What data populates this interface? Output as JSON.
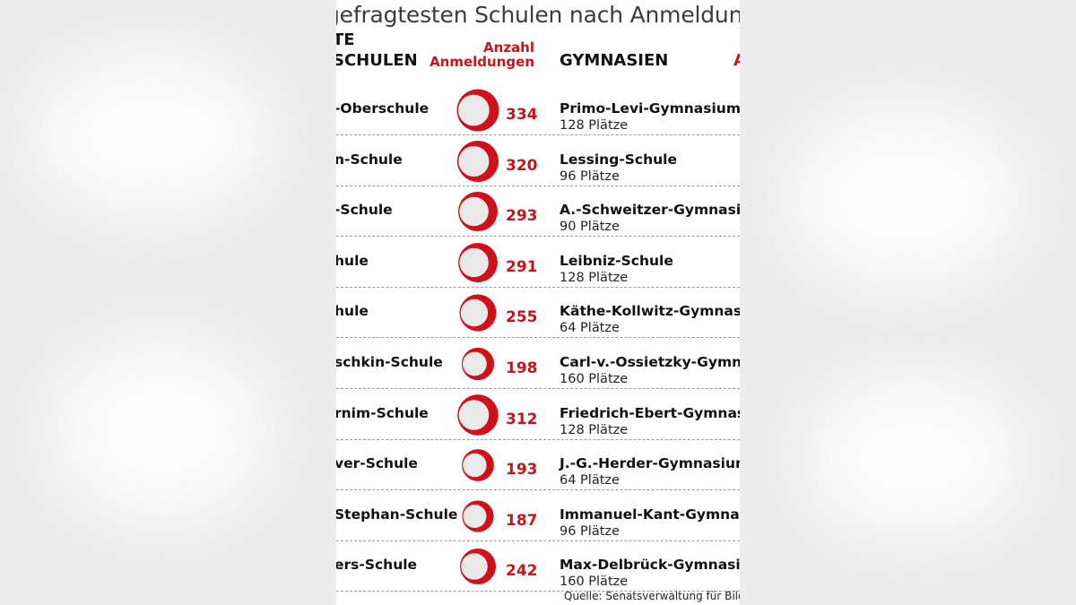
{
  "title": "gefragtesten Schulen nach Anmeldunge",
  "header": {
    "left_line1": "TE",
    "left_line2": "SCHULEN",
    "count_line1": "Anzahl",
    "count_line2": "Anmeldungen",
    "gymnasien": "GYMNASIEN",
    "right_fragment": "A"
  },
  "colors": {
    "accent": "#d0101a",
    "bubble_fill": "#e9e9e9"
  },
  "source": "Quelle: Senatsverwaltung für Bildung",
  "chart_data": {
    "type": "table",
    "columns": [
      "Oberschule",
      "Anzahl Anmeldungen",
      "Gymnasium",
      "Plätze"
    ],
    "rows": [
      {
        "oberschule": "-Oberschule",
        "anmeldungen": 334,
        "gymnasium": "Primo-Levi-Gymnasium",
        "plaetze": "128 Plätze"
      },
      {
        "oberschule": "n-Schule",
        "anmeldungen": 320,
        "gymnasium": "Lessing-Schule",
        "plaetze": "96 Plätze"
      },
      {
        "oberschule": "-Schule",
        "anmeldungen": 293,
        "gymnasium": "A.-Schweitzer-Gymnasium",
        "plaetze": "90 Plätze"
      },
      {
        "oberschule": "hule",
        "anmeldungen": 291,
        "gymnasium": "Leibniz-Schule",
        "plaetze": "128 Plätze"
      },
      {
        "oberschule": "hule",
        "anmeldungen": 255,
        "gymnasium": "Käthe-Kollwitz-Gymnasium",
        "plaetze": "64 Plätze"
      },
      {
        "oberschule": "schkin-Schule",
        "anmeldungen": 198,
        "gymnasium": "Carl-v.-Ossietzky-Gymnasi",
        "plaetze": "160 Plätze"
      },
      {
        "oberschule": "rnim-Schule",
        "anmeldungen": 312,
        "gymnasium": "Friedrich-Ebert-Gymnasiu",
        "plaetze": "128 Plätze"
      },
      {
        "oberschule": "ver-Schule",
        "anmeldungen": 193,
        "gymnasium": "J.-G.-Herder-Gymnasium",
        "plaetze": "64 Plätze"
      },
      {
        "oberschule": "Stephan-Schule",
        "anmeldungen": 187,
        "gymnasium": "Immanuel-Kant-Gymnasiu",
        "plaetze": "96 Plätze"
      },
      {
        "oberschule": "ers-Schule",
        "anmeldungen": 242,
        "gymnasium": "Max-Delbrück-Gymnasium",
        "plaetze": "160 Plätze"
      }
    ]
  }
}
